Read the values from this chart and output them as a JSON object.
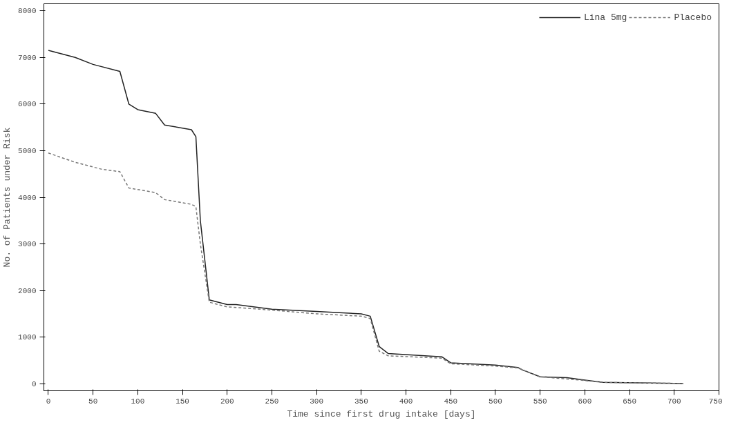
{
  "chart_data": {
    "type": "line",
    "xlabel": "Time since first drug intake [days]",
    "ylabel": "No. of Patients under Risk",
    "xlim": [
      -5,
      750
    ],
    "ylim": [
      -150,
      8150
    ],
    "xticks": [
      0,
      50,
      100,
      150,
      200,
      250,
      300,
      350,
      400,
      450,
      500,
      550,
      600,
      650,
      700,
      750
    ],
    "yticks": [
      0,
      1000,
      2000,
      3000,
      4000,
      5000,
      6000,
      7000,
      8000
    ],
    "grid": false,
    "legend": "top right",
    "marker": "none",
    "series": [
      {
        "name": "Lina 5mg",
        "color": "#222222",
        "line_style": "solid",
        "x": [
          0,
          30,
          50,
          80,
          90,
          100,
          120,
          130,
          160,
          165,
          170,
          180,
          200,
          210,
          250,
          300,
          350,
          360,
          370,
          380,
          440,
          450,
          500,
          525,
          530,
          550,
          580,
          600,
          620,
          700,
          710
        ],
        "values": [
          7150,
          7000,
          6850,
          6700,
          6000,
          5880,
          5800,
          5550,
          5450,
          5300,
          3500,
          1800,
          1700,
          1700,
          1600,
          1550,
          1500,
          1450,
          800,
          650,
          580,
          450,
          400,
          350,
          300,
          150,
          130,
          80,
          30,
          10,
          0
        ]
      },
      {
        "name": "Placebo",
        "color": "#777777",
        "line_style": "dashed",
        "x": [
          0,
          30,
          60,
          80,
          90,
          120,
          130,
          160,
          165,
          170,
          180,
          200,
          250,
          300,
          350,
          360,
          370,
          380,
          440,
          450,
          500,
          525,
          550,
          600,
          620,
          700,
          710
        ],
        "values": [
          4950,
          4750,
          4600,
          4550,
          4200,
          4100,
          3950,
          3850,
          3800,
          3000,
          1750,
          1650,
          1580,
          1500,
          1450,
          1400,
          700,
          600,
          550,
          430,
          380,
          340,
          150,
          70,
          30,
          10,
          0
        ]
      }
    ]
  }
}
